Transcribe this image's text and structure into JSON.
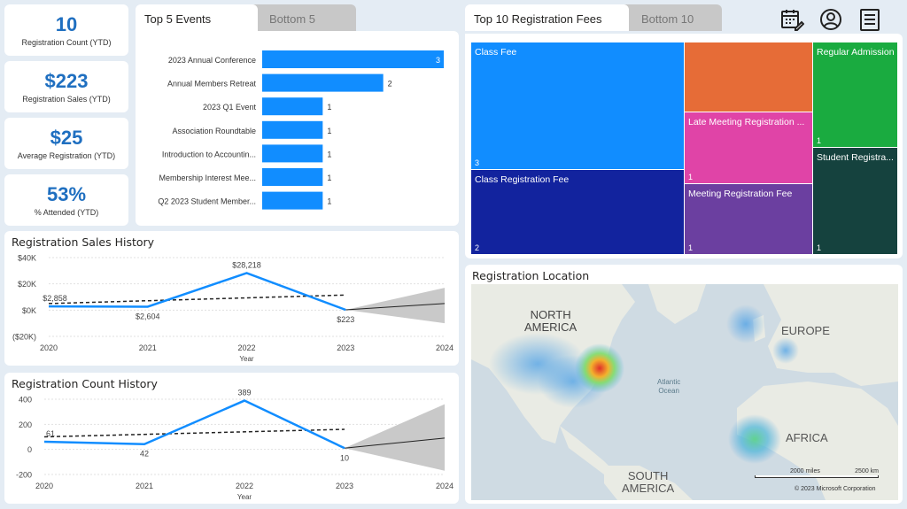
{
  "kpis": [
    {
      "value": "10",
      "label": "Registration Count (YTD)"
    },
    {
      "value": "$223",
      "label": "Registration Sales (YTD)"
    },
    {
      "value": "$25",
      "label": "Average Registration (YTD)"
    },
    {
      "value": "53%",
      "label": "% Attended (YTD)"
    }
  ],
  "events_tabs": {
    "active": "Top 5 Events",
    "inactive": "Bottom 5"
  },
  "fees_tabs": {
    "active": "Top 10 Registration Fees",
    "inactive": "Bottom 10"
  },
  "header_icons": [
    "calendar-edit-icon",
    "user-profile-icon",
    "report-document-icon"
  ],
  "colors": {
    "accent": "#1f6fc0",
    "bar": "#118dff",
    "line": "#118dff"
  },
  "top_events": [
    {
      "name": "2023 Annual Conference",
      "value": 3
    },
    {
      "name": "Annual Members Retreat",
      "value": 2
    },
    {
      "name": "2023 Q1 Event",
      "value": 1
    },
    {
      "name": "Association Roundtable",
      "value": 1
    },
    {
      "name": "Introduction to Accountin...",
      "value": 1
    },
    {
      "name": "Membership Interest Mee...",
      "value": 1
    },
    {
      "name": "Q2 2023 Student Member...",
      "value": 1
    }
  ],
  "treemap": [
    {
      "name": "Class Fee",
      "value": "3",
      "color": "#118dff"
    },
    {
      "name": "",
      "value": "",
      "color": "#e66c37"
    },
    {
      "name": "Regular Admission",
      "value": "1",
      "color": "#1aab40"
    },
    {
      "name": "Late Meeting Registration ...",
      "value": "1",
      "color": "#e044a7"
    },
    {
      "name": "Student Registra...",
      "value": "1",
      "color": "#15423e"
    },
    {
      "name": "Class Registration Fee",
      "value": "2",
      "color": "#12239e"
    },
    {
      "name": "Meeting Registration Fee",
      "value": "1",
      "color": "#6b3fa0"
    }
  ],
  "sales_history": {
    "title": "Registration Sales History",
    "xlabel": "Year",
    "y_ticks": [
      "$40K",
      "$20K",
      "$0K",
      "($20K)"
    ],
    "x_ticks": [
      "2020",
      "2021",
      "2022",
      "2023",
      "2024"
    ],
    "data_labels": [
      "$2,858",
      "$2,604",
      "$28,218",
      "$223"
    ]
  },
  "count_history": {
    "title": "Registration Count History",
    "xlabel": "Year",
    "y_ticks": [
      "400",
      "200",
      "0",
      "-200"
    ],
    "x_ticks": [
      "2020",
      "2021",
      "2022",
      "2023",
      "2024"
    ],
    "data_labels": [
      "61",
      "42",
      "389",
      "10"
    ]
  },
  "chart_data": [
    {
      "type": "line",
      "title": "Registration Sales History",
      "xlabel": "Year",
      "ylabel": "",
      "x": [
        2020,
        2021,
        2022,
        2023
      ],
      "series": [
        {
          "values": [
            2858,
            2604,
            28218,
            223
          ]
        }
      ],
      "ylim": [
        -20000,
        40000
      ],
      "forecast": {
        "x": [
          2023,
          2024
        ],
        "values": [
          223,
          5000
        ],
        "upper": [
          223,
          17000
        ],
        "lower": [
          223,
          -10000
        ]
      },
      "trend": {
        "x": [
          2020,
          2023
        ],
        "values": [
          5000,
          11500
        ]
      },
      "grid": true
    },
    {
      "type": "line",
      "title": "Registration Count History",
      "xlabel": "Year",
      "ylabel": "",
      "x": [
        2020,
        2021,
        2022,
        2023
      ],
      "series": [
        {
          "values": [
            61,
            42,
            389,
            10
          ]
        }
      ],
      "ylim": [
        -200,
        400
      ],
      "forecast": {
        "x": [
          2023,
          2024
        ],
        "values": [
          10,
          90
        ],
        "upper": [
          10,
          360
        ],
        "lower": [
          10,
          -170
        ]
      },
      "trend": {
        "x": [
          2020,
          2023
        ],
        "values": [
          100,
          160
        ]
      },
      "grid": true
    }
  ],
  "map": {
    "title": "Registration Location",
    "labels": {
      "north_america": "NORTH\nAMERICA",
      "europe": "EUROPE",
      "africa": "AFRICA",
      "south_america": "SOUTH\nAMERICA",
      "ocean": "Atlantic\nOcean"
    },
    "scale_miles": "2000 miles",
    "scale_km": "2500 km",
    "copyright": "© 2023 Microsoft Corporation"
  }
}
